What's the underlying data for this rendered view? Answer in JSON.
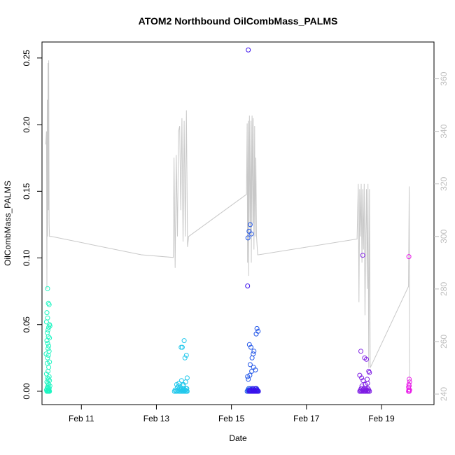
{
  "chart_data": {
    "type": "scatter",
    "title": "ATOM2 Northbound OilCombMass_PALMS",
    "xlabel": "Date",
    "ylabel": "OilCombMass_PALMS",
    "x_unit": "days in February",
    "xlim": [
      9.95,
      20.4
    ],
    "ylim": [
      -0.01,
      0.262
    ],
    "y2lim": [
      236,
      374
    ],
    "x_ticks": [
      11,
      13,
      15,
      17,
      19
    ],
    "x_tick_labels": [
      "Feb 11",
      "Feb 13",
      "Feb 15",
      "Feb 17",
      "Feb 19"
    ],
    "y_ticks": [
      0,
      0.05,
      0.1,
      0.15,
      0.2,
      0.25
    ],
    "y_tick_labels": [
      "0.00",
      "0.05",
      "0.10",
      "0.15",
      "0.20",
      "0.25"
    ],
    "y2_ticks": [
      240,
      260,
      280,
      300,
      320,
      340,
      360
    ],
    "y2_tick_labels": [
      "240",
      "260",
      "280",
      "300",
      "320",
      "340",
      "360"
    ],
    "grid": false,
    "legend": "none",
    "series": [
      {
        "color": "#1ef5c2",
        "x": [
          10.1,
          10.12,
          10.08,
          10.14,
          10.1,
          10.15,
          10.13,
          10.07,
          10.11,
          10.16,
          10.09,
          10.12,
          10.15,
          10.08,
          10.1,
          10.13,
          10.11,
          10.14,
          10.06,
          10.12,
          10.1,
          10.15,
          10.09,
          10.13,
          10.11,
          10.07,
          10.14,
          10.1,
          10.12,
          10.15,
          10.08,
          10.11,
          10.13,
          10.16,
          10.09,
          10.12,
          10.1,
          10.14,
          10.07,
          10.11,
          10.13,
          10.1,
          10.15,
          10.12,
          10.08,
          10.14,
          10.1,
          10.12,
          10.09,
          10.13
        ],
        "y": [
          0.077,
          0.066,
          0.059,
          0.065,
          0.055,
          0.05,
          0.048,
          0.052,
          0.046,
          0.049,
          0.044,
          0.041,
          0.04,
          0.038,
          0.036,
          0.034,
          0.032,
          0.03,
          0.028,
          0.027,
          0.025,
          0.022,
          0.021,
          0.018,
          0.015,
          0.013,
          0.011,
          0.01,
          0.009,
          0.008,
          0.007,
          0.006,
          0.005,
          0.004,
          0.003,
          0.003,
          0.002,
          0.002,
          0.001,
          0.001,
          0.001,
          0.0,
          0.0,
          0.0,
          0.0,
          0.0,
          0.0,
          0.0,
          0.0,
          0.0
        ]
      },
      {
        "color": "#22c8ec",
        "x": [
          13.48,
          13.52,
          13.55,
          13.6,
          13.63,
          13.66,
          13.69,
          13.72,
          13.75,
          13.78,
          13.8,
          13.82,
          13.5,
          13.58,
          13.65,
          13.7,
          13.74,
          13.77,
          13.62,
          13.68,
          13.73,
          13.79,
          13.81,
          13.56,
          13.64,
          13.71,
          13.66,
          13.69,
          13.74,
          13.8,
          13.54,
          13.6,
          13.67,
          13.72,
          13.78,
          13.82,
          13.59,
          13.76
        ],
        "y": [
          0.0,
          0.0,
          0.0,
          0.0,
          0.0,
          0.0,
          0.0,
          0.0,
          0.0,
          0.0,
          0.0,
          0.0,
          0.001,
          0.001,
          0.001,
          0.001,
          0.001,
          0.001,
          0.002,
          0.002,
          0.002,
          0.002,
          0.002,
          0.003,
          0.003,
          0.004,
          0.033,
          0.033,
          0.038,
          0.027,
          0.005,
          0.006,
          0.008,
          0.005,
          0.007,
          0.01,
          0.004,
          0.025
        ]
      },
      {
        "color": "#1f54e8",
        "x": [
          15.42,
          15.45,
          15.48,
          15.5,
          15.52,
          15.55,
          15.58,
          15.6,
          15.62,
          15.65,
          15.68,
          15.7,
          15.44,
          15.47,
          15.53,
          15.57,
          15.61,
          15.66,
          15.69,
          15.46,
          15.51,
          15.56,
          15.63,
          15.67,
          15.45,
          15.49,
          15.54,
          15.59,
          15.64,
          15.43,
          15.5,
          15.58,
          15.48,
          15.52,
          15.6,
          15.55,
          15.47,
          15.5,
          15.53,
          15.44,
          15.68,
          15.71,
          15.66
        ],
        "y": [
          0.0,
          0.0,
          0.0,
          0.0,
          0.0,
          0.0,
          0.0,
          0.0,
          0.0,
          0.0,
          0.0,
          0.0,
          0.001,
          0.001,
          0.001,
          0.001,
          0.001,
          0.001,
          0.001,
          0.002,
          0.002,
          0.002,
          0.002,
          0.002,
          0.009,
          0.012,
          0.015,
          0.018,
          0.016,
          0.011,
          0.02,
          0.028,
          0.035,
          0.033,
          0.03,
          0.025,
          0.12,
          0.125,
          0.118,
          0.115,
          0.047,
          0.045,
          0.043
        ]
      },
      {
        "color": "#3a10ec",
        "x": [
          15.45,
          15.43,
          15.48,
          15.5,
          15.54,
          15.57,
          15.6,
          15.63,
          15.66,
          15.69,
          15.72,
          15.5,
          15.56,
          15.62,
          15.68,
          15.58,
          15.65
        ],
        "y": [
          0.256,
          0.079,
          0.0,
          0.0,
          0.0,
          0.0,
          0.0,
          0.0,
          0.0,
          0.0,
          0.0,
          0.001,
          0.001,
          0.001,
          0.001,
          0.002,
          0.002
        ]
      },
      {
        "color": "#7e1de4",
        "x": [
          18.42,
          18.45,
          18.48,
          18.52,
          18.55,
          18.58,
          18.62,
          18.65,
          18.68,
          18.44,
          18.5,
          18.56,
          18.6,
          18.66,
          18.46,
          18.53,
          18.59,
          18.64,
          18.48,
          18.57,
          18.63,
          18.42,
          18.47,
          18.51,
          18.45,
          18.55,
          18.6,
          18.66,
          18.68,
          18.5,
          18.62
        ],
        "y": [
          0.0,
          0.0,
          0.0,
          0.0,
          0.0,
          0.0,
          0.0,
          0.0,
          0.0,
          0.001,
          0.001,
          0.001,
          0.001,
          0.001,
          0.002,
          0.002,
          0.002,
          0.002,
          0.004,
          0.005,
          0.006,
          0.012,
          0.01,
          0.008,
          0.03,
          0.025,
          0.024,
          0.015,
          0.014,
          0.102,
          0.009
        ]
      },
      {
        "color": "#e81ce8",
        "x": [
          19.72,
          19.74,
          19.73,
          19.75,
          19.72,
          19.74,
          19.73,
          19.75,
          19.74,
          19.73
        ],
        "y": [
          0.0,
          0.0,
          0.001,
          0.001,
          0.003,
          0.004,
          0.005,
          0.007,
          0.009,
          0.101
        ]
      }
    ],
    "secondary_series": {
      "type": "line",
      "color": "#c8c8c8",
      "x": [
        10.05,
        10.07,
        10.08,
        10.09,
        10.1,
        10.11,
        10.12,
        10.13,
        10.14,
        10.15,
        10.16,
        10.17,
        10.18,
        10.2,
        12.6,
        13.45,
        13.47,
        13.5,
        13.53,
        13.56,
        13.59,
        13.62,
        13.65,
        13.68,
        13.71,
        13.74,
        13.77,
        13.8,
        13.83,
        13.86,
        15.4,
        15.42,
        15.43,
        15.45,
        15.46,
        15.48,
        15.5,
        15.52,
        15.53,
        15.55,
        15.57,
        15.58,
        15.6,
        15.62,
        15.63,
        15.65,
        15.67,
        15.7,
        15.72,
        18.35,
        18.38,
        18.4,
        18.42,
        18.44,
        18.46,
        18.48,
        18.5,
        18.52,
        18.54,
        18.56,
        18.58,
        18.6,
        18.62,
        18.64,
        18.66,
        18.68,
        18.7,
        19.72,
        19.74,
        19.75
      ],
      "y": [
        335,
        340,
        280,
        352,
        300,
        366,
        310,
        367,
        305,
        300,
        300,
        300,
        300,
        300,
        293,
        292,
        330,
        288,
        331,
        300,
        340,
        342,
        310,
        345,
        298,
        344,
        300,
        348,
        296,
        300,
        316,
        343,
        290,
        344,
        285,
        346,
        300,
        344,
        290,
        346,
        305,
        345,
        295,
        342,
        300,
        330,
        300,
        293,
        293,
        299,
        320,
        275,
        318,
        300,
        320,
        290,
        318,
        295,
        320,
        270,
        300,
        318,
        280,
        320,
        250,
        318,
        250,
        281,
        319,
        244
      ]
    }
  }
}
